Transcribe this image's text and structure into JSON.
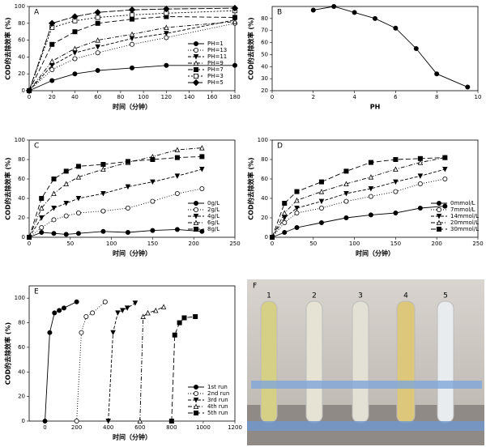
{
  "chart_data": [
    {
      "type": "line",
      "panel": "A",
      "xlabel": "时间（分钟）",
      "ylabel": "COD的去除效率 (%)",
      "x": [
        0,
        20,
        40,
        60,
        90,
        120,
        180
      ],
      "xlim": [
        0,
        180
      ],
      "xticks": [
        0,
        20,
        40,
        60,
        80,
        100,
        120,
        140,
        160,
        180
      ],
      "ylim": [
        0,
        100
      ],
      "yticks": [
        0,
        20,
        40,
        60,
        80,
        100
      ],
      "legend": "lower right",
      "series": [
        {
          "name": "PH=1",
          "color": "#000000",
          "marker": "circle",
          "filled": true,
          "dash": "none",
          "values": [
            0,
            12,
            20,
            24,
            27,
            30,
            30
          ]
        },
        {
          "name": "PH=13",
          "color": "#000000",
          "marker": "circle",
          "filled": false,
          "dash": "1,2",
          "values": [
            0,
            25,
            38,
            45,
            55,
            63,
            80
          ]
        },
        {
          "name": "PH=11",
          "color": "#000000",
          "marker": "triangle-down",
          "filled": true,
          "dash": "4,2",
          "values": [
            0,
            30,
            45,
            52,
            62,
            68,
            84
          ]
        },
        {
          "name": "PH=9",
          "color": "#000000",
          "marker": "triangle-up",
          "filled": false,
          "dash": "5,2,1,2",
          "values": [
            0,
            35,
            50,
            60,
            67,
            75,
            82
          ]
        },
        {
          "name": "PH=7",
          "color": "#000000",
          "marker": "square",
          "filled": true,
          "dash": "6,3",
          "values": [
            0,
            55,
            70,
            80,
            85,
            88,
            87
          ]
        },
        {
          "name": "PH=3",
          "color": "#000000",
          "marker": "square",
          "filled": false,
          "dash": "2,2",
          "values": [
            0,
            75,
            83,
            87,
            90,
            92,
            95
          ]
        },
        {
          "name": "PH=5",
          "color": "#000000",
          "marker": "diamond",
          "filled": true,
          "dash": "8,2",
          "values": [
            0,
            80,
            88,
            93,
            96,
            97,
            98
          ]
        }
      ]
    },
    {
      "type": "line",
      "panel": "B",
      "xlabel": "PH",
      "ylabel": "COD的去除效率 (%)",
      "x": [
        2,
        3,
        4,
        5,
        6,
        7,
        8,
        9.5
      ],
      "xlim": [
        0,
        10
      ],
      "xticks": [
        0,
        2,
        4,
        6,
        8,
        10
      ],
      "ylim": [
        20,
        90
      ],
      "yticks": [
        20,
        30,
        40,
        50,
        60,
        70,
        80
      ],
      "series": [
        {
          "color": "#000000",
          "marker": "circle",
          "filled": true,
          "dash": "none",
          "values": [
            87,
            90,
            85,
            80,
            72,
            55,
            34,
            23
          ]
        }
      ]
    },
    {
      "type": "line",
      "panel": "C",
      "xlabel": "时间（分钟）",
      "ylabel": "COD的去除效率 (%)",
      "x": [
        0,
        15,
        30,
        45,
        60,
        90,
        120,
        150,
        180,
        210
      ],
      "xlim": [
        0,
        250
      ],
      "xticks": [
        0,
        50,
        100,
        150,
        200,
        250
      ],
      "ylim": [
        0,
        100
      ],
      "yticks": [
        0,
        20,
        40,
        60,
        80,
        100
      ],
      "legend": "lower right",
      "series": [
        {
          "name": "0g/L",
          "color": "#000000",
          "marker": "circle",
          "filled": true,
          "dash": "none",
          "values": [
            0,
            5,
            4,
            3,
            4,
            6,
            5,
            7,
            8,
            6
          ]
        },
        {
          "name": "2g/L",
          "color": "#000000",
          "marker": "circle",
          "filled": false,
          "dash": "1,2",
          "values": [
            0,
            10,
            18,
            22,
            25,
            27,
            30,
            37,
            45,
            50
          ]
        },
        {
          "name": "4g/L",
          "color": "#000000",
          "marker": "triangle-down",
          "filled": true,
          "dash": "4,2",
          "values": [
            0,
            20,
            30,
            35,
            40,
            45,
            52,
            57,
            63,
            70
          ]
        },
        {
          "name": "6g/L",
          "color": "#000000",
          "marker": "triangle-up",
          "filled": false,
          "dash": "5,2,1,2",
          "values": [
            0,
            30,
            45,
            55,
            62,
            70,
            77,
            83,
            90,
            92
          ]
        },
        {
          "name": "8g/L",
          "color": "#000000",
          "marker": "square",
          "filled": true,
          "dash": "6,3",
          "values": [
            0,
            40,
            60,
            68,
            73,
            75,
            78,
            80,
            82,
            83
          ]
        }
      ]
    },
    {
      "type": "line",
      "panel": "D",
      "xlabel": "时间（分钟）",
      "ylabel": "COD的去除效率 (%)",
      "x": [
        0,
        15,
        30,
        60,
        90,
        120,
        150,
        180,
        210
      ],
      "xlim": [
        0,
        250
      ],
      "xticks": [
        0,
        50,
        100,
        150,
        200,
        250
      ],
      "ylim": [
        0,
        100
      ],
      "yticks": [
        0,
        20,
        40,
        60,
        80,
        100
      ],
      "legend": "lower right",
      "series": [
        {
          "name": "0mmol/L",
          "color": "#000000",
          "marker": "circle",
          "filled": true,
          "dash": "none",
          "values": [
            0,
            5,
            10,
            15,
            20,
            23,
            25,
            30,
            32
          ]
        },
        {
          "name": "7mmol/L",
          "color": "#000000",
          "marker": "circle",
          "filled": false,
          "dash": "1,2",
          "values": [
            0,
            15,
            25,
            30,
            37,
            42,
            47,
            55,
            60
          ]
        },
        {
          "name": "14mmol/L",
          "color": "#000000",
          "marker": "triangle-down",
          "filled": true,
          "dash": "4,2",
          "values": [
            0,
            20,
            30,
            37,
            45,
            50,
            57,
            63,
            70
          ]
        },
        {
          "name": "20mmol/L",
          "color": "#000000",
          "marker": "triangle-up",
          "filled": false,
          "dash": "5,2,1,2",
          "values": [
            0,
            25,
            38,
            47,
            55,
            62,
            70,
            77,
            82
          ]
        },
        {
          "name": "30mmol/L",
          "color": "#000000",
          "marker": "square",
          "filled": true,
          "dash": "6,3",
          "values": [
            0,
            35,
            47,
            57,
            68,
            77,
            80,
            81,
            82
          ]
        }
      ]
    },
    {
      "type": "line",
      "panel": "E",
      "xlabel": "时间（分钟）",
      "ylabel": "COD的去除效率 (%)",
      "xlim": [
        -100,
        1200
      ],
      "xticks": [
        0,
        200,
        400,
        600,
        800,
        1000,
        1200
      ],
      "ylim": [
        0,
        110
      ],
      "yticks": [
        0,
        20,
        40,
        60,
        80,
        100
      ],
      "legend": "lower right",
      "series": [
        {
          "name": "1st run",
          "color": "#000000",
          "marker": "circle",
          "filled": true,
          "dash": "none",
          "x": [
            0,
            30,
            60,
            90,
            120,
            200
          ],
          "values": [
            0,
            72,
            88,
            90,
            92,
            97
          ]
        },
        {
          "name": "2nd run",
          "color": "#000000",
          "marker": "circle",
          "filled": false,
          "dash": "1,2",
          "x": [
            200,
            230,
            260,
            300,
            380
          ],
          "values": [
            0,
            72,
            85,
            88,
            97
          ]
        },
        {
          "name": "3rd run",
          "color": "#000000",
          "marker": "triangle-down",
          "filled": true,
          "dash": "4,2",
          "x": [
            400,
            430,
            460,
            490,
            520,
            570
          ],
          "values": [
            0,
            72,
            88,
            90,
            92,
            96
          ]
        },
        {
          "name": "4th run",
          "color": "#000000",
          "marker": "triangle-up",
          "filled": false,
          "dash": "5,2,1,2",
          "x": [
            600,
            620,
            650,
            700,
            750
          ],
          "values": [
            0,
            85,
            88,
            90,
            93
          ]
        },
        {
          "name": "5th run",
          "color": "#000000",
          "marker": "square",
          "filled": true,
          "dash": "6,3",
          "x": [
            800,
            820,
            850,
            880,
            950
          ],
          "values": [
            0,
            70,
            80,
            84,
            85
          ]
        }
      ]
    }
  ],
  "photo": {
    "panel": "F",
    "tube_labels": [
      "1",
      "2",
      "3",
      "4",
      "5"
    ]
  }
}
